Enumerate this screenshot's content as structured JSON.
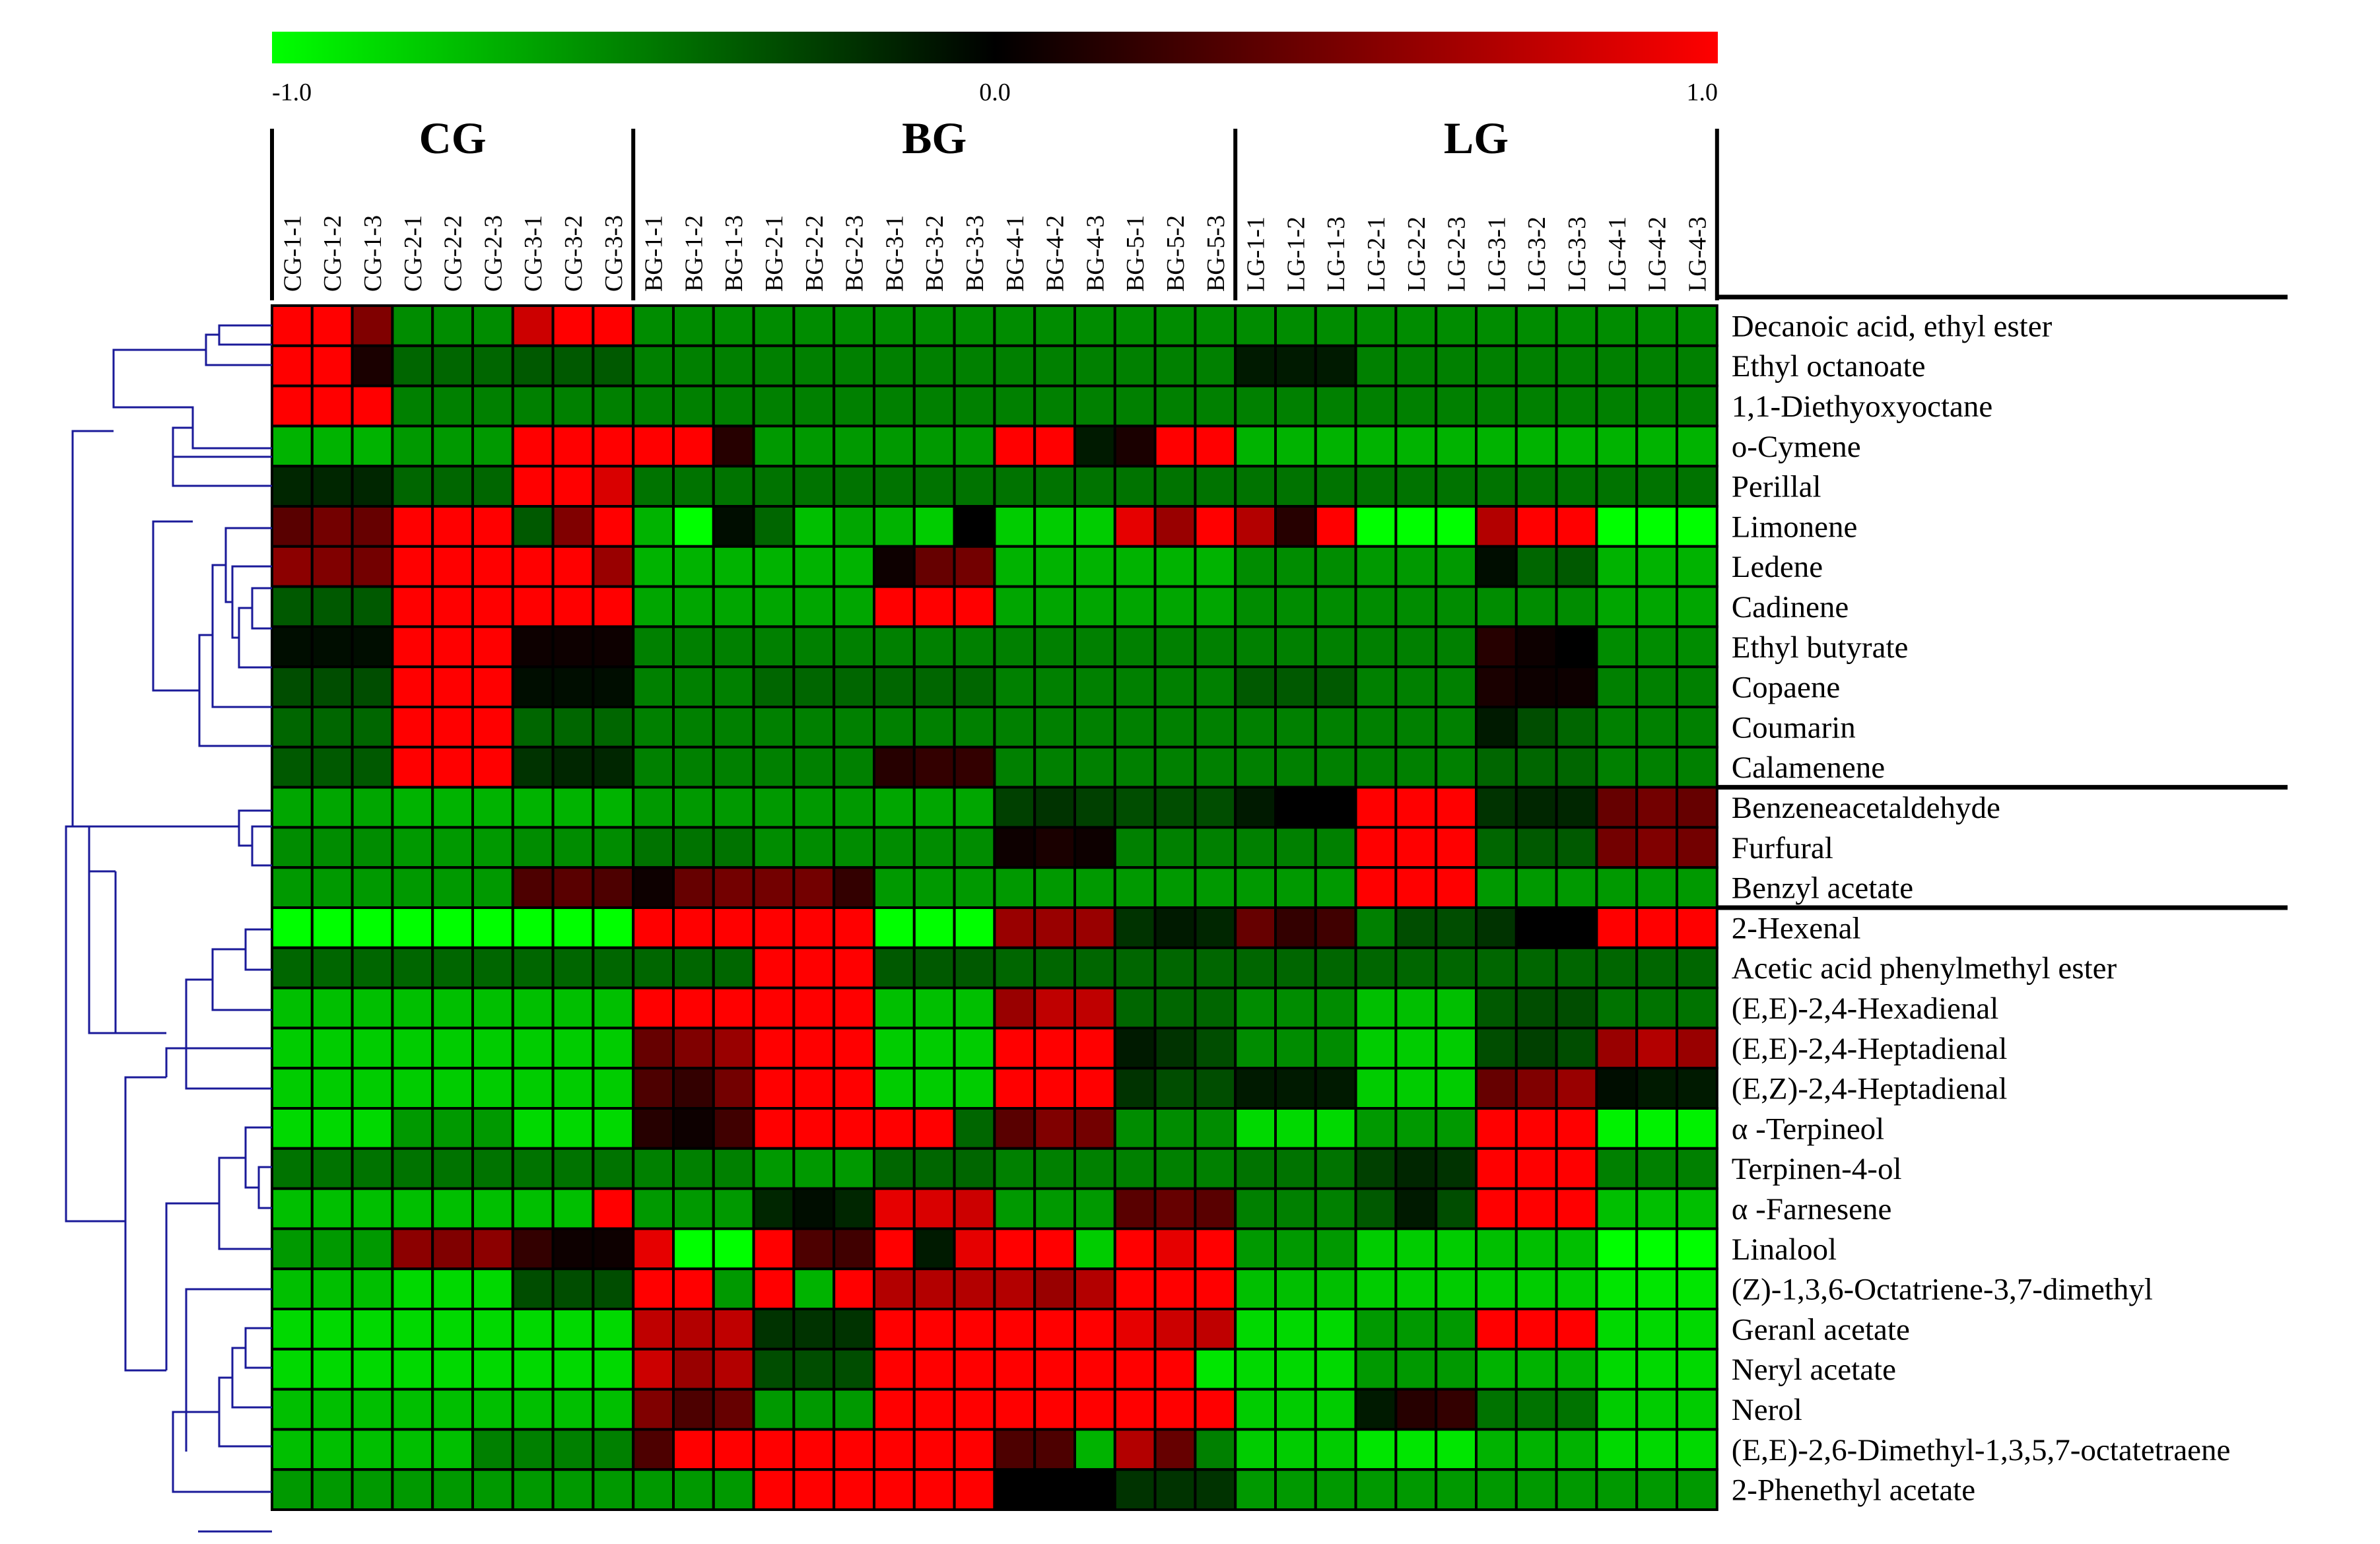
{
  "chart_data": {
    "type": "heatmap",
    "title": "",
    "colorbar": {
      "min_label": "-1.0",
      "mid_label": "0.0",
      "max_label": "1.0",
      "min": -1.0,
      "max": 1.0,
      "colors": {
        "low": "#00ff00",
        "mid": "#000000",
        "high": "#ff0000"
      }
    },
    "groups": [
      {
        "name": "CG",
        "start": 0,
        "end": 8
      },
      {
        "name": "BG",
        "start": 9,
        "end": 23
      },
      {
        "name": "LG",
        "start": 24,
        "end": 35
      }
    ],
    "columns": [
      "CG-1-1",
      "CG-1-2",
      "CG-1-3",
      "CG-2-1",
      "CG-2-2",
      "CG-2-3",
      "CG-3-1",
      "CG-3-2",
      "CG-3-3",
      "BG-1-1",
      "BG-1-2",
      "BG-1-3",
      "BG-2-1",
      "BG-2-2",
      "BG-2-3",
      "BG-3-1",
      "BG-3-2",
      "BG-3-3",
      "BG-4-1",
      "BG-4-2",
      "BG-4-3",
      "BG-5-1",
      "BG-5-2",
      "BG-5-3",
      "LG-1-1",
      "LG-1-2",
      "LG-1-3",
      "LG-2-1",
      "LG-2-2",
      "LG-2-3",
      "LG-3-1",
      "LG-3-2",
      "LG-3-3",
      "LG-4-1",
      "LG-4-2",
      "LG-4-3"
    ],
    "rows": [
      "Decanoic acid, ethyl ester",
      "Ethyl octanoate",
      "1,1-Diethyoxyoctane",
      "o-Cymene",
      "Perillal",
      "Limonene",
      "Ledene",
      "Cadinene",
      "Ethyl butyrate",
      "Copaene",
      "Coumarin",
      "Calamenene",
      "Benzeneacetaldehyde",
      "Furfural",
      "Benzyl acetate",
      "2-Hexenal",
      "Acetic acid phenylmethyl ester",
      "(E,E)-2,4-Hexadienal",
      "(E,E)-2,4-Heptadienal",
      "(E,Z)-2,4-Heptadienal",
      "α -Terpineol",
      "Terpinen-4-ol",
      "α -Farnesene",
      "Linalool",
      "(Z)-1,3,6-Octatriene-3,7-dimethyl",
      "Geranl acetate",
      "Neryl acetate",
      "Nerol",
      "(E,E)-2,6-Dimethyl-1,3,5,7-octatetraene",
      "2-Phenethyl acetate"
    ],
    "cluster_separators_after_row": [
      11,
      14
    ],
    "values": [
      [
        1.0,
        1.0,
        0.5,
        -0.55,
        -0.55,
        -0.55,
        0.8,
        1.0,
        1.0,
        -0.55,
        -0.55,
        -0.55,
        -0.55,
        -0.55,
        -0.55,
        -0.55,
        -0.55,
        -0.55,
        -0.55,
        -0.55,
        -0.55,
        -0.55,
        -0.55,
        -0.55,
        -0.55,
        -0.55,
        -0.55,
        -0.55,
        -0.55,
        -0.55,
        -0.55,
        -0.55,
        -0.55,
        -0.55,
        -0.55,
        -0.55
      ],
      [
        1.0,
        1.0,
        0.1,
        -0.4,
        -0.4,
        -0.4,
        -0.35,
        -0.35,
        -0.35,
        -0.5,
        -0.5,
        -0.5,
        -0.5,
        -0.5,
        -0.5,
        -0.5,
        -0.5,
        -0.5,
        -0.5,
        -0.5,
        -0.5,
        -0.5,
        -0.5,
        -0.5,
        -0.1,
        -0.1,
        -0.1,
        -0.5,
        -0.5,
        -0.5,
        -0.5,
        -0.5,
        -0.5,
        -0.5,
        -0.5,
        -0.5
      ],
      [
        1.0,
        1.0,
        1.0,
        -0.5,
        -0.5,
        -0.5,
        -0.5,
        -0.5,
        -0.5,
        -0.5,
        -0.5,
        -0.5,
        -0.5,
        -0.5,
        -0.5,
        -0.5,
        -0.5,
        -0.5,
        -0.5,
        -0.5,
        -0.5,
        -0.5,
        -0.5,
        -0.5,
        -0.5,
        -0.5,
        -0.5,
        -0.5,
        -0.5,
        -0.5,
        -0.5,
        -0.5,
        -0.5,
        -0.5,
        -0.5,
        -0.5
      ],
      [
        -0.7,
        -0.7,
        -0.7,
        -0.6,
        -0.6,
        -0.6,
        1.0,
        1.0,
        1.0,
        1.0,
        1.0,
        0.15,
        -0.6,
        -0.6,
        -0.6,
        -0.6,
        -0.6,
        -0.6,
        1.0,
        1.0,
        -0.1,
        0.1,
        1.0,
        1.0,
        -0.7,
        -0.7,
        -0.7,
        -0.7,
        -0.7,
        -0.7,
        -0.7,
        -0.7,
        -0.7,
        -0.7,
        -0.7,
        -0.7
      ],
      [
        -0.15,
        -0.15,
        -0.15,
        -0.4,
        -0.4,
        -0.4,
        1.0,
        1.0,
        0.85,
        -0.45,
        -0.45,
        -0.45,
        -0.45,
        -0.45,
        -0.45,
        -0.45,
        -0.45,
        -0.45,
        -0.45,
        -0.45,
        -0.45,
        -0.45,
        -0.45,
        -0.45,
        -0.45,
        -0.45,
        -0.45,
        -0.45,
        -0.45,
        -0.45,
        -0.45,
        -0.45,
        -0.45,
        -0.45,
        -0.45,
        -0.45
      ],
      [
        0.35,
        0.45,
        0.4,
        1.0,
        1.0,
        1.0,
        -0.35,
        0.5,
        1.0,
        -0.7,
        -1.0,
        -0.05,
        -0.4,
        -0.75,
        -0.65,
        -0.7,
        -0.8,
        0.0,
        -0.8,
        -0.8,
        -0.8,
        0.9,
        0.6,
        1.0,
        0.7,
        0.15,
        1.0,
        -1.0,
        -1.0,
        -1.0,
        0.7,
        1.0,
        1.0,
        -1.0,
        -1.0,
        -1.0
      ],
      [
        0.55,
        0.5,
        0.45,
        1.0,
        1.0,
        1.0,
        1.0,
        1.0,
        0.6,
        -0.7,
        -0.7,
        -0.7,
        -0.7,
        -0.7,
        -0.7,
        0.05,
        0.4,
        0.45,
        -0.7,
        -0.7,
        -0.7,
        -0.7,
        -0.7,
        -0.7,
        -0.55,
        -0.55,
        -0.55,
        -0.6,
        -0.6,
        -0.6,
        -0.05,
        -0.4,
        -0.35,
        -0.7,
        -0.7,
        -0.7
      ],
      [
        -0.35,
        -0.35,
        -0.35,
        1.0,
        1.0,
        1.0,
        1.0,
        1.0,
        1.0,
        -0.65,
        -0.65,
        -0.65,
        -0.65,
        -0.65,
        -0.65,
        1.0,
        1.0,
        1.0,
        -0.65,
        -0.65,
        -0.65,
        -0.65,
        -0.65,
        -0.65,
        -0.55,
        -0.55,
        -0.55,
        -0.55,
        -0.55,
        -0.55,
        -0.55,
        -0.55,
        -0.55,
        -0.65,
        -0.65,
        -0.65
      ],
      [
        -0.05,
        -0.05,
        -0.05,
        1.0,
        1.0,
        1.0,
        0.05,
        0.05,
        0.05,
        -0.5,
        -0.5,
        -0.5,
        -0.5,
        -0.5,
        -0.5,
        -0.5,
        -0.5,
        -0.5,
        -0.5,
        -0.5,
        -0.5,
        -0.5,
        -0.5,
        -0.5,
        -0.5,
        -0.5,
        -0.5,
        -0.5,
        -0.5,
        -0.5,
        0.15,
        0.05,
        0.0,
        -0.55,
        -0.55,
        -0.55
      ],
      [
        -0.3,
        -0.3,
        -0.3,
        1.0,
        1.0,
        1.0,
        -0.05,
        -0.05,
        -0.05,
        -0.5,
        -0.5,
        -0.5,
        -0.4,
        -0.4,
        -0.4,
        -0.4,
        -0.4,
        -0.4,
        -0.5,
        -0.5,
        -0.5,
        -0.5,
        -0.5,
        -0.5,
        -0.35,
        -0.35,
        -0.35,
        -0.5,
        -0.5,
        -0.5,
        0.1,
        0.05,
        0.05,
        -0.5,
        -0.5,
        -0.5
      ],
      [
        -0.4,
        -0.4,
        -0.4,
        1.0,
        1.0,
        1.0,
        -0.4,
        -0.4,
        -0.4,
        -0.5,
        -0.5,
        -0.5,
        -0.5,
        -0.5,
        -0.5,
        -0.5,
        -0.5,
        -0.5,
        -0.5,
        -0.5,
        -0.5,
        -0.5,
        -0.5,
        -0.5,
        -0.5,
        -0.5,
        -0.5,
        -0.5,
        -0.5,
        -0.5,
        -0.1,
        -0.3,
        -0.4,
        -0.5,
        -0.5,
        -0.5
      ],
      [
        -0.35,
        -0.35,
        -0.35,
        1.0,
        1.0,
        1.0,
        -0.2,
        -0.15,
        -0.15,
        -0.5,
        -0.5,
        -0.5,
        -0.5,
        -0.5,
        -0.5,
        0.15,
        0.2,
        0.2,
        -0.5,
        -0.5,
        -0.5,
        -0.5,
        -0.5,
        -0.5,
        -0.5,
        -0.5,
        -0.5,
        -0.5,
        -0.5,
        -0.5,
        -0.4,
        -0.4,
        -0.4,
        -0.5,
        -0.5,
        -0.5
      ],
      [
        -0.65,
        -0.65,
        -0.65,
        -0.7,
        -0.7,
        -0.7,
        -0.7,
        -0.7,
        -0.7,
        -0.6,
        -0.6,
        -0.6,
        -0.6,
        -0.6,
        -0.6,
        -0.65,
        -0.65,
        -0.65,
        -0.25,
        -0.2,
        -0.25,
        -0.3,
        -0.3,
        -0.3,
        -0.1,
        0.0,
        0.0,
        1.0,
        1.0,
        1.0,
        -0.2,
        -0.15,
        -0.15,
        0.4,
        0.45,
        0.4
      ],
      [
        -0.55,
        -0.55,
        -0.55,
        -0.6,
        -0.6,
        -0.6,
        -0.55,
        -0.55,
        -0.55,
        -0.45,
        -0.45,
        -0.45,
        -0.55,
        -0.55,
        -0.55,
        -0.55,
        -0.55,
        -0.55,
        0.05,
        0.1,
        0.05,
        -0.5,
        -0.5,
        -0.5,
        -0.5,
        -0.5,
        -0.5,
        1.0,
        1.0,
        1.0,
        -0.4,
        -0.35,
        -0.35,
        0.45,
        0.5,
        0.45
      ],
      [
        -0.6,
        -0.6,
        -0.6,
        -0.6,
        -0.6,
        -0.6,
        0.3,
        0.35,
        0.3,
        0.05,
        0.4,
        0.45,
        0.45,
        0.45,
        0.2,
        -0.6,
        -0.6,
        -0.6,
        -0.6,
        -0.6,
        -0.6,
        -0.6,
        -0.6,
        -0.6,
        -0.6,
        -0.6,
        -0.6,
        1.0,
        1.0,
        1.0,
        -0.6,
        -0.6,
        -0.6,
        -0.6,
        -0.6,
        -0.6
      ],
      [
        -1.0,
        -1.0,
        -1.0,
        -1.0,
        -1.0,
        -1.0,
        -1.0,
        -1.0,
        -1.0,
        1.0,
        1.0,
        1.0,
        1.0,
        1.0,
        1.0,
        -1.0,
        -1.0,
        -1.0,
        0.6,
        0.6,
        0.6,
        -0.2,
        -0.1,
        -0.15,
        0.4,
        0.2,
        0.25,
        -0.5,
        -0.3,
        -0.3,
        -0.2,
        0.0,
        0.0,
        1.0,
        1.0,
        1.0
      ],
      [
        -0.4,
        -0.4,
        -0.4,
        -0.4,
        -0.4,
        -0.4,
        -0.4,
        -0.4,
        -0.4,
        -0.4,
        -0.4,
        -0.4,
        1.0,
        1.0,
        1.0,
        -0.35,
        -0.35,
        -0.35,
        -0.4,
        -0.4,
        -0.4,
        -0.4,
        -0.4,
        -0.4,
        -0.4,
        -0.4,
        -0.4,
        -0.4,
        -0.4,
        -0.4,
        -0.4,
        -0.4,
        -0.4,
        -0.4,
        -0.4,
        -0.4
      ],
      [
        -0.75,
        -0.75,
        -0.75,
        -0.75,
        -0.75,
        -0.75,
        -0.75,
        -0.75,
        -0.75,
        1.0,
        1.0,
        1.0,
        1.0,
        1.0,
        1.0,
        -0.75,
        -0.75,
        -0.75,
        0.6,
        0.75,
        0.75,
        -0.4,
        -0.4,
        -0.4,
        -0.55,
        -0.55,
        -0.55,
        -0.75,
        -0.75,
        -0.75,
        -0.35,
        -0.3,
        -0.3,
        -0.45,
        -0.45,
        -0.45
      ],
      [
        -0.8,
        -0.8,
        -0.8,
        -0.8,
        -0.8,
        -0.8,
        -0.8,
        -0.8,
        -0.8,
        0.4,
        0.5,
        0.6,
        1.0,
        1.0,
        1.0,
        -0.8,
        -0.8,
        -0.8,
        1.0,
        1.0,
        1.0,
        -0.1,
        -0.2,
        -0.3,
        -0.55,
        -0.55,
        -0.55,
        -0.8,
        -0.8,
        -0.8,
        -0.3,
        -0.25,
        -0.3,
        0.6,
        0.7,
        0.6
      ],
      [
        -0.8,
        -0.8,
        -0.8,
        -0.8,
        -0.8,
        -0.8,
        -0.8,
        -0.8,
        -0.8,
        0.3,
        0.2,
        0.45,
        1.0,
        1.0,
        1.0,
        -0.8,
        -0.8,
        -0.8,
        1.0,
        1.0,
        1.0,
        -0.2,
        -0.3,
        -0.3,
        -0.1,
        -0.1,
        -0.1,
        -0.8,
        -0.8,
        -0.8,
        0.4,
        0.5,
        0.6,
        -0.05,
        -0.1,
        -0.1
      ],
      [
        -0.85,
        -0.85,
        -0.85,
        -0.6,
        -0.6,
        -0.6,
        -0.85,
        -0.85,
        -0.85,
        0.15,
        0.05,
        0.25,
        1.0,
        1.0,
        1.0,
        1.0,
        1.0,
        -0.4,
        0.35,
        0.5,
        0.45,
        -0.55,
        -0.55,
        -0.55,
        -0.85,
        -0.85,
        -0.85,
        -0.6,
        -0.6,
        -0.6,
        1.0,
        1.0,
        1.0,
        -0.95,
        -0.95,
        -0.95
      ],
      [
        -0.45,
        -0.45,
        -0.45,
        -0.45,
        -0.45,
        -0.45,
        -0.45,
        -0.45,
        -0.45,
        -0.5,
        -0.5,
        -0.5,
        -0.6,
        -0.6,
        -0.6,
        -0.4,
        -0.4,
        -0.4,
        -0.5,
        -0.5,
        -0.5,
        -0.5,
        -0.5,
        -0.5,
        -0.45,
        -0.45,
        -0.45,
        -0.25,
        -0.15,
        -0.2,
        1.0,
        1.0,
        1.0,
        -0.5,
        -0.5,
        -0.5
      ],
      [
        -0.75,
        -0.75,
        -0.75,
        -0.75,
        -0.75,
        -0.75,
        -0.75,
        -0.75,
        1.0,
        -0.6,
        -0.6,
        -0.6,
        -0.15,
        -0.05,
        -0.15,
        0.9,
        0.85,
        0.8,
        -0.6,
        -0.6,
        -0.6,
        0.35,
        0.4,
        0.35,
        -0.5,
        -0.5,
        -0.5,
        -0.35,
        -0.1,
        -0.3,
        1.0,
        1.0,
        1.0,
        -0.75,
        -0.75,
        -0.75
      ],
      [
        -0.6,
        -0.6,
        -0.6,
        0.55,
        0.5,
        0.55,
        0.2,
        0.05,
        0.05,
        0.9,
        -1.0,
        -1.0,
        1.0,
        0.3,
        0.25,
        1.0,
        -0.1,
        0.9,
        1.0,
        1.0,
        -0.8,
        1.0,
        0.9,
        1.0,
        -0.6,
        -0.6,
        -0.6,
        -0.8,
        -0.8,
        -0.8,
        -0.75,
        -0.75,
        -0.75,
        -1.0,
        -1.0,
        -1.0
      ],
      [
        -0.75,
        -0.75,
        -0.75,
        -0.85,
        -0.85,
        -0.85,
        -0.3,
        -0.3,
        -0.3,
        1.0,
        1.0,
        -0.6,
        1.0,
        -0.7,
        1.0,
        0.7,
        0.7,
        0.7,
        0.7,
        0.6,
        0.7,
        1.0,
        1.0,
        1.0,
        -0.75,
        -0.75,
        -0.75,
        -0.8,
        -0.8,
        -0.8,
        -0.8,
        -0.8,
        -0.8,
        -0.9,
        -0.9,
        -0.9
      ],
      [
        -0.85,
        -0.85,
        -0.85,
        -0.85,
        -0.85,
        -0.85,
        -0.85,
        -0.85,
        -0.85,
        0.75,
        0.7,
        0.75,
        -0.2,
        -0.2,
        -0.2,
        1.0,
        1.0,
        1.0,
        1.0,
        1.0,
        1.0,
        0.9,
        0.8,
        0.75,
        -0.85,
        -0.85,
        -0.85,
        -0.6,
        -0.6,
        -0.6,
        1.0,
        1.0,
        1.0,
        -0.85,
        -0.85,
        -0.85
      ],
      [
        -0.85,
        -0.85,
        -0.85,
        -0.85,
        -0.85,
        -0.85,
        -0.85,
        -0.85,
        -0.85,
        0.8,
        0.6,
        0.7,
        -0.3,
        -0.3,
        -0.3,
        1.0,
        1.0,
        1.0,
        1.0,
        1.0,
        1.0,
        1.0,
        1.0,
        -0.9,
        -0.85,
        -0.85,
        -0.85,
        -0.6,
        -0.6,
        -0.6,
        -0.7,
        -0.7,
        -0.7,
        -0.85,
        -0.85,
        -0.85
      ],
      [
        -0.75,
        -0.75,
        -0.75,
        -0.75,
        -0.75,
        -0.75,
        -0.75,
        -0.75,
        -0.75,
        0.5,
        0.3,
        0.4,
        -0.6,
        -0.6,
        -0.6,
        1.0,
        1.0,
        1.0,
        1.0,
        1.0,
        1.0,
        1.0,
        1.0,
        1.0,
        -0.8,
        -0.8,
        -0.8,
        -0.1,
        0.15,
        0.2,
        -0.45,
        -0.45,
        -0.45,
        -0.8,
        -0.8,
        -0.8
      ],
      [
        -0.75,
        -0.75,
        -0.75,
        -0.75,
        -0.75,
        -0.5,
        -0.5,
        -0.5,
        -0.5,
        0.3,
        1.0,
        1.0,
        1.0,
        1.0,
        1.0,
        1.0,
        1.0,
        1.0,
        0.3,
        0.3,
        -0.7,
        0.7,
        0.4,
        -0.5,
        -0.8,
        -0.8,
        -0.8,
        -0.9,
        -0.9,
        -0.9,
        -0.7,
        -0.7,
        -0.7,
        -0.85,
        -0.85,
        -0.85
      ],
      [
        -0.6,
        -0.6,
        -0.6,
        -0.6,
        -0.6,
        -0.6,
        -0.6,
        -0.6,
        -0.6,
        -0.6,
        -0.6,
        -0.6,
        1.0,
        1.0,
        1.0,
        1.0,
        1.0,
        1.0,
        0.0,
        0.0,
        0.0,
        -0.2,
        -0.2,
        -0.2,
        -0.6,
        -0.6,
        -0.6,
        -0.6,
        -0.6,
        -0.6,
        -0.6,
        -0.6,
        -0.6,
        -0.6,
        -0.6,
        -0.6
      ]
    ]
  }
}
